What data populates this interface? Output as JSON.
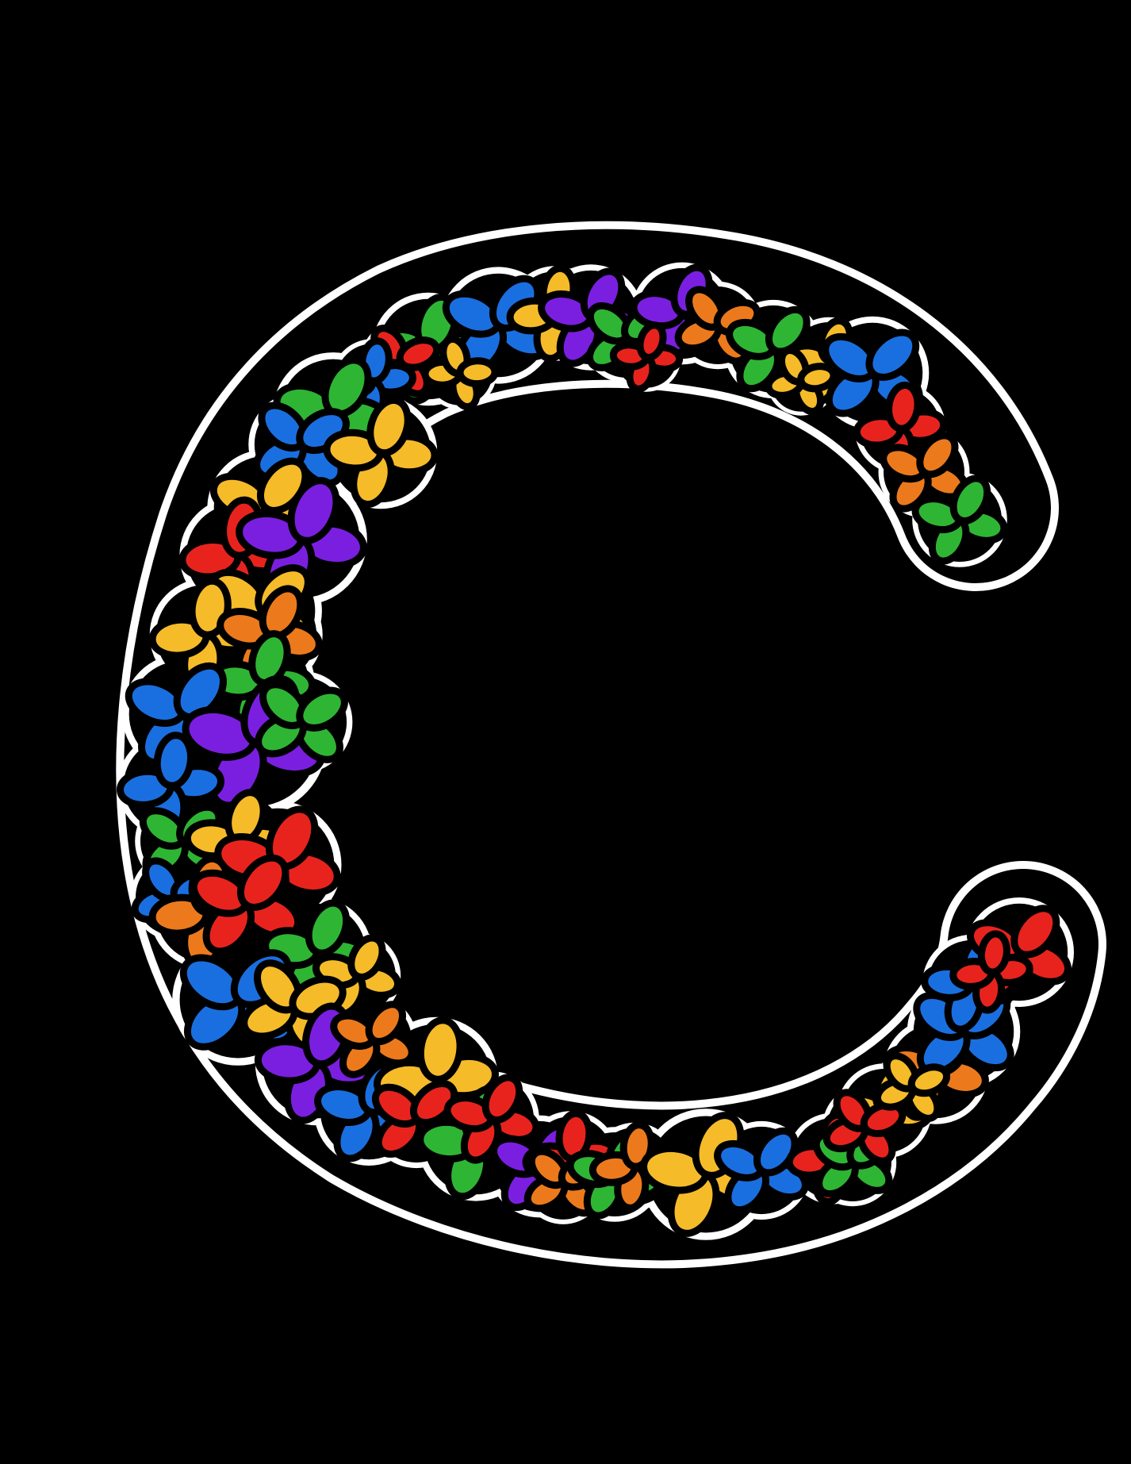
{
  "artwork": {
    "subject": "letter-c-flower-wreath",
    "background_color": "#000000",
    "sticker_border_color": "#ffffff",
    "outline_color": "#000000",
    "flower_palette": {
      "red": "#e8231e",
      "orange": "#ec7a1c",
      "yellow": "#f5bb29",
      "green": "#2fb534",
      "blue": "#1a6fe0",
      "purple": "#7a1fe0"
    },
    "icon": "flower-icon"
  }
}
